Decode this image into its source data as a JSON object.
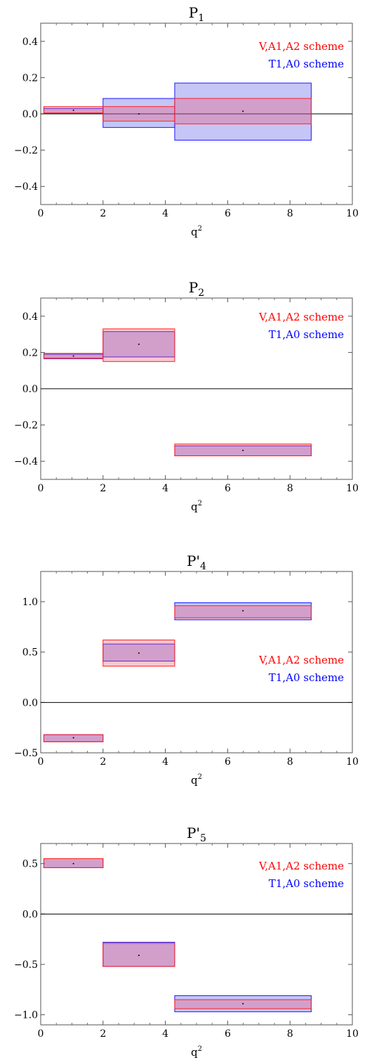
{
  "chart_data": [
    {
      "type": "bar",
      "title_main": "P",
      "title_sub": "1",
      "xlabel_main": "q",
      "xlabel_sup": "2",
      "xlim": [
        0,
        10
      ],
      "ylim": [
        -0.5,
        0.5
      ],
      "xticks": [
        0,
        2,
        4,
        6,
        8,
        10
      ],
      "yticks": [
        -0.4,
        -0.2,
        0.0,
        0.2,
        0.4
      ],
      "yticklabels": [
        "−0.4",
        "−0.2",
        "0.0",
        "0.2",
        "0.4"
      ],
      "legend_position": "top-right",
      "bins": [
        {
          "x0": 0.1,
          "x1": 2.0,
          "center": 0.02,
          "red": [
            0.005,
            0.04
          ],
          "blue": [
            0.002,
            0.03
          ]
        },
        {
          "x0": 2.0,
          "x1": 4.3,
          "center": 0.0,
          "red": [
            -0.04,
            0.04
          ],
          "blue": [
            -0.075,
            0.085
          ]
        },
        {
          "x0": 4.3,
          "x1": 8.68,
          "center": 0.015,
          "red": [
            -0.055,
            0.085
          ],
          "blue": [
            -0.145,
            0.17
          ]
        }
      ],
      "series": [
        {
          "name": "V,A1,A2 scheme",
          "color": "#ff0000"
        },
        {
          "name": "T1,A0 scheme",
          "color": "#0000ff"
        }
      ]
    },
    {
      "type": "bar",
      "title_main": "P",
      "title_sub": "2",
      "xlabel_main": "q",
      "xlabel_sup": "2",
      "xlim": [
        0,
        10
      ],
      "ylim": [
        -0.5,
        0.5
      ],
      "xticks": [
        0,
        2,
        4,
        6,
        8,
        10
      ],
      "yticks": [
        -0.4,
        -0.2,
        0.0,
        0.2,
        0.4
      ],
      "yticklabels": [
        "−0.4",
        "−0.2",
        "0.0",
        "0.2",
        "0.4"
      ],
      "legend_position": "top-right",
      "bins": [
        {
          "x0": 0.1,
          "x1": 2.0,
          "center": 0.18,
          "red": [
            0.165,
            0.195
          ],
          "blue": [
            0.168,
            0.19
          ]
        },
        {
          "x0": 2.0,
          "x1": 4.3,
          "center": 0.245,
          "red": [
            0.15,
            0.33
          ],
          "blue": [
            0.175,
            0.315
          ]
        },
        {
          "x0": 4.3,
          "x1": 8.68,
          "center": -0.34,
          "red": [
            -0.37,
            -0.305
          ],
          "blue": [
            -0.37,
            -0.315
          ]
        }
      ],
      "series": [
        {
          "name": "V,A1,A2 scheme",
          "color": "#ff0000"
        },
        {
          "name": "T1,A0 scheme",
          "color": "#0000ff"
        }
      ]
    },
    {
      "type": "bar",
      "title_main": "P'",
      "title_sub": "4",
      "xlabel_main": "q",
      "xlabel_sup": "2",
      "xlim": [
        0,
        10
      ],
      "ylim": [
        -0.5,
        1.3
      ],
      "xticks": [
        0,
        2,
        4,
        6,
        8,
        10
      ],
      "yticks": [
        -0.5,
        0.0,
        0.5,
        1.0
      ],
      "yticklabels": [
        "−0.5",
        "0.0",
        "0.5",
        "1.0"
      ],
      "legend_position": "center-right",
      "bins": [
        {
          "x0": 0.1,
          "x1": 2.0,
          "center": -0.35,
          "red": [
            -0.39,
            -0.32
          ],
          "blue": [
            -0.39,
            -0.32
          ]
        },
        {
          "x0": 2.0,
          "x1": 4.3,
          "center": 0.49,
          "red": [
            0.36,
            0.62
          ],
          "blue": [
            0.41,
            0.58
          ]
        },
        {
          "x0": 4.3,
          "x1": 8.68,
          "center": 0.91,
          "red": [
            0.84,
            0.96
          ],
          "blue": [
            0.82,
            0.99
          ]
        }
      ],
      "series": [
        {
          "name": "V,A1,A2 scheme",
          "color": "#ff0000"
        },
        {
          "name": "T1,A0 scheme",
          "color": "#0000ff"
        }
      ]
    },
    {
      "type": "bar",
      "title_main": "P'",
      "title_sub": "5",
      "xlabel_main": "q",
      "xlabel_sup": "2",
      "xlim": [
        0,
        10
      ],
      "ylim": [
        -1.1,
        0.7
      ],
      "xticks": [
        0,
        2,
        4,
        6,
        8,
        10
      ],
      "yticks": [
        -1.0,
        -0.5,
        0.0,
        0.5
      ],
      "yticklabels": [
        "−1.0",
        "−0.5",
        "0.0",
        "0.5"
      ],
      "legend_position": "top-right",
      "bins": [
        {
          "x0": 0.1,
          "x1": 2.0,
          "center": 0.5,
          "red": [
            0.46,
            0.55
          ],
          "blue": [
            0.46,
            0.55
          ]
        },
        {
          "x0": 2.0,
          "x1": 4.3,
          "center": -0.41,
          "red": [
            -0.52,
            -0.29
          ],
          "blue": [
            -0.52,
            -0.28
          ]
        },
        {
          "x0": 4.3,
          "x1": 8.68,
          "center": -0.89,
          "red": [
            -0.94,
            -0.85
          ],
          "blue": [
            -0.97,
            -0.81
          ]
        }
      ],
      "series": [
        {
          "name": "V,A1,A2 scheme",
          "color": "#ff0000"
        },
        {
          "name": "T1,A0 scheme",
          "color": "#0000ff"
        }
      ]
    }
  ]
}
